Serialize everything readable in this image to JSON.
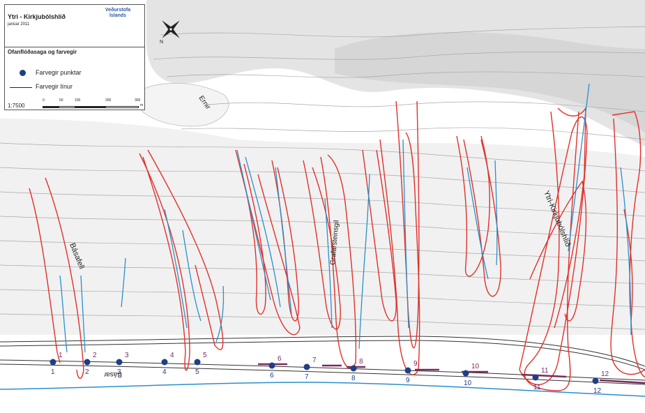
{
  "legend": {
    "title": "Ytri - Kirkjubólshlíð",
    "date": "janúar 2011",
    "logo": "Veðurstofa Íslands",
    "subtitle": "Ofanflóðasaga og farvegir",
    "item_points": "Farvegir punktar",
    "item_lines": "Farvegir línur",
    "scale": "1:7500",
    "scale_ticks": [
      "0",
      "50",
      "100",
      "200",
      "300"
    ],
    "scale_unit": "m"
  },
  "north_label": "N",
  "place_labels": {
    "ernir": "Ernir",
    "basafell": "Básafell",
    "grafarsteinsgil": "Grafarsteinsgil",
    "ytri_kirkjubolshlid": "Ytri-Kirkjubólshlíð",
    "baser": "Básar"
  },
  "points": [
    {
      "id": "1",
      "top": "1",
      "bottom": "1"
    },
    {
      "id": "2",
      "top": "2",
      "bottom": "2"
    },
    {
      "id": "3",
      "top": "3",
      "bottom": "3"
    },
    {
      "id": "4",
      "top": "4",
      "bottom": "4"
    },
    {
      "id": "5",
      "top": "5",
      "bottom": "5"
    },
    {
      "id": "6",
      "top": "6",
      "bottom": "6"
    },
    {
      "id": "7",
      "top": "7",
      "bottom": "7"
    },
    {
      "id": "8",
      "top": "8",
      "bottom": "8"
    },
    {
      "id": "9",
      "top": "9",
      "bottom": "9"
    },
    {
      "id": "10",
      "top": "10",
      "bottom": "10"
    },
    {
      "id": "11",
      "top": "11",
      "bottom": "11"
    },
    {
      "id": "12",
      "top": "12",
      "bottom": "12"
    }
  ],
  "colors": {
    "runout_outline": "#e0302a",
    "channel": "#2a8fcc",
    "point": "#1e3f86",
    "shoreline": "#2a8fcc",
    "contour": "#9a9a9a",
    "terrain_light": "#ededed",
    "terrain_mid": "#dcdcdc"
  }
}
